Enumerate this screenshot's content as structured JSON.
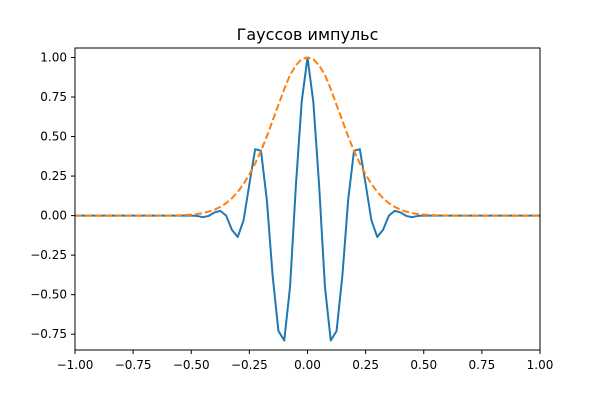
{
  "chart_data": {
    "type": "line",
    "title": "Гауссов импульс",
    "xlabel": "",
    "ylabel": "",
    "xlim": [
      -1.0,
      1.0
    ],
    "ylim": [
      -0.85,
      1.06
    ],
    "x_ticks": [
      "−1.00",
      "−0.75",
      "−0.50",
      "−0.25",
      "0.00",
      "0.25",
      "0.50",
      "0.75",
      "1.00"
    ],
    "x_tick_values": [
      -1.0,
      -0.75,
      -0.5,
      -0.25,
      0.0,
      0.25,
      0.5,
      0.75,
      1.0
    ],
    "y_ticks": [
      "−0.75",
      "−0.50",
      "−0.25",
      "0.00",
      "0.25",
      "0.50",
      "0.75",
      "1.00"
    ],
    "y_tick_values": [
      -0.75,
      -0.5,
      -0.25,
      0.0,
      0.25,
      0.5,
      0.75,
      1.0
    ],
    "grid": false,
    "legend": "none",
    "series": [
      {
        "style": "solid",
        "color": "#1f77b4",
        "x": [
          -1.0,
          -0.95,
          -0.9,
          -0.85,
          -0.8,
          -0.75,
          -0.7,
          -0.65,
          -0.6,
          -0.55,
          -0.5,
          -0.475,
          -0.45,
          -0.425,
          -0.4,
          -0.375,
          -0.35,
          -0.325,
          -0.3,
          -0.275,
          -0.25,
          -0.225,
          -0.2,
          -0.175,
          -0.15,
          -0.125,
          -0.1,
          -0.075,
          -0.05,
          -0.025,
          0.0,
          0.025,
          0.05,
          0.075,
          0.1,
          0.125,
          0.15,
          0.175,
          0.2,
          0.225,
          0.25,
          0.275,
          0.3,
          0.325,
          0.35,
          0.375,
          0.4,
          0.425,
          0.45,
          0.475,
          0.5,
          0.55,
          0.6,
          0.65,
          0.7,
          0.75,
          0.8,
          0.85,
          0.9,
          0.95,
          1.0
        ],
        "y": [
          0.0,
          0.0,
          0.0,
          0.0,
          0.0,
          0.0,
          0.0,
          0.0,
          0.0,
          0.0,
          0.0,
          -0.002,
          -0.01,
          -0.002,
          0.02,
          0.03,
          0.0,
          -0.09,
          -0.135,
          -0.03,
          0.2,
          0.42,
          0.41,
          0.1,
          -0.38,
          -0.73,
          -0.79,
          -0.45,
          0.19,
          0.72,
          1.0,
          0.72,
          0.19,
          -0.45,
          -0.79,
          -0.73,
          -0.38,
          0.1,
          0.41,
          0.42,
          0.2,
          -0.03,
          -0.135,
          -0.09,
          0.0,
          0.03,
          0.02,
          -0.002,
          -0.01,
          -0.002,
          0.0,
          0.0,
          0.0,
          0.0,
          0.0,
          0.0,
          0.0,
          0.0,
          0.0,
          0.0,
          0.0
        ]
      },
      {
        "style": "dashed",
        "color": "#ff7f0e",
        "x": [
          -1.0,
          -0.95,
          -0.9,
          -0.85,
          -0.8,
          -0.75,
          -0.7,
          -0.65,
          -0.6,
          -0.55,
          -0.5,
          -0.475,
          -0.45,
          -0.425,
          -0.4,
          -0.375,
          -0.35,
          -0.325,
          -0.3,
          -0.275,
          -0.25,
          -0.225,
          -0.2,
          -0.175,
          -0.15,
          -0.125,
          -0.1,
          -0.075,
          -0.05,
          -0.025,
          0.0,
          0.025,
          0.05,
          0.075,
          0.1,
          0.125,
          0.15,
          0.175,
          0.2,
          0.225,
          0.25,
          0.275,
          0.3,
          0.325,
          0.35,
          0.375,
          0.4,
          0.425,
          0.45,
          0.475,
          0.5,
          0.55,
          0.6,
          0.65,
          0.7,
          0.75,
          0.8,
          0.85,
          0.9,
          0.95,
          1.0
        ],
        "y": [
          0.0,
          0.0,
          0.0,
          0.0,
          0.0,
          0.0,
          0.0,
          0.0,
          0.001,
          0.002,
          0.006,
          0.01,
          0.016,
          0.025,
          0.037,
          0.055,
          0.079,
          0.11,
          0.15,
          0.2,
          0.26,
          0.33,
          0.41,
          0.5,
          0.6,
          0.7,
          0.8,
          0.89,
          0.95,
          0.99,
          1.0,
          0.99,
          0.95,
          0.89,
          0.8,
          0.7,
          0.6,
          0.5,
          0.41,
          0.33,
          0.26,
          0.2,
          0.15,
          0.11,
          0.079,
          0.055,
          0.037,
          0.025,
          0.016,
          0.01,
          0.006,
          0.002,
          0.001,
          0.0,
          0.0,
          0.0,
          0.0,
          0.0,
          0.0,
          0.0,
          0.0
        ]
      }
    ]
  }
}
